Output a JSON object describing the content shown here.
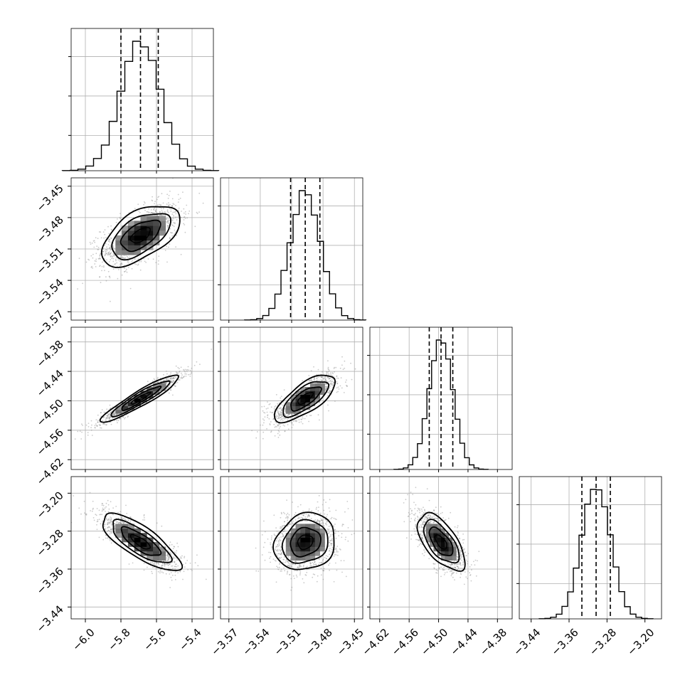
{
  "chart_data": {
    "type": "corner",
    "parameters": [
      {
        "center": -5.69,
        "sigma": 0.11,
        "quantiles": [
          -5.8,
          -5.69,
          -5.59
        ],
        "range": [
          -6.08,
          -5.28
        ],
        "ticks": [
          -6.0,
          -5.8,
          -5.6,
          -5.4
        ],
        "tick_labels": [
          "−6.0",
          "−5.8",
          "−5.6",
          "−5.4"
        ]
      },
      {
        "center": -3.497,
        "sigma": 0.0145,
        "quantiles": [
          -3.511,
          -3.497,
          -3.483
        ],
        "range": [
          -3.578,
          -3.442
        ],
        "ticks": [
          -3.57,
          -3.54,
          -3.51,
          -3.48,
          -3.45
        ],
        "tick_labels": [
          "−3.57",
          "−3.54",
          "−3.51",
          "−3.48",
          "−3.45"
        ]
      },
      {
        "center": -4.495,
        "sigma": 0.024,
        "quantiles": [
          -4.519,
          -4.495,
          -4.471
        ],
        "range": [
          -4.64,
          -4.35
        ],
        "ticks": [
          -4.62,
          -4.56,
          -4.5,
          -4.44,
          -4.38
        ],
        "tick_labels": [
          "−4.62",
          "−4.56",
          "−4.50",
          "−4.44",
          "−4.38"
        ]
      },
      {
        "center": -3.303,
        "sigma": 0.03,
        "quantiles": [
          -3.333,
          -3.303,
          -3.273
        ],
        "range": [
          -3.465,
          -3.165
        ],
        "ticks": [
          -3.44,
          -3.36,
          -3.28,
          -3.2
        ],
        "tick_labels": [
          "−3.44",
          "−3.36",
          "−3.28",
          "−3.20"
        ]
      }
    ],
    "correlations": [
      {
        "row": 1,
        "col": 0,
        "rho": 0.55
      },
      {
        "row": 2,
        "col": 0,
        "rho": 0.93
      },
      {
        "row": 2,
        "col": 1,
        "rho": 0.72
      },
      {
        "row": 3,
        "col": 0,
        "rho": -0.78
      },
      {
        "row": 3,
        "col": 1,
        "rho": 0.15
      },
      {
        "row": 3,
        "col": 2,
        "rho": -0.62
      }
    ],
    "histogram_bins": 20,
    "contour_levels_sigma": [
      0.5,
      1.0,
      1.5,
      2.0
    ],
    "quantile_line_style": "dashed",
    "grid": true,
    "colors": {
      "line": "#000000",
      "points": "#999999",
      "grid": "#b0b0b0"
    }
  }
}
